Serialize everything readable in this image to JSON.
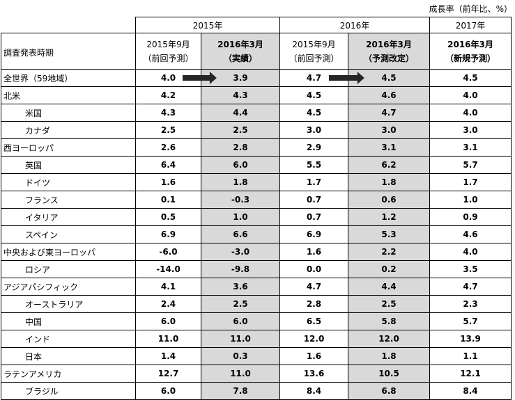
{
  "unit_note": "成長率（前年比、%）",
  "header": {
    "row_label": "調査発表時期",
    "years": [
      "2015年",
      "2016年",
      "2017年"
    ],
    "columns": [
      {
        "line1": "2015年9月",
        "line2": "（前回予測）",
        "bold": false,
        "shaded": false
      },
      {
        "line1": "2016年3月",
        "line2": "（実績）",
        "bold": true,
        "shaded": true
      },
      {
        "line1": "2015年9月",
        "line2": "（前回予測）",
        "bold": false,
        "shaded": false
      },
      {
        "line1": "2016年3月",
        "line2": "（予測改定）",
        "bold": true,
        "shaded": true
      },
      {
        "line1": "2016年3月",
        "line2": "（新規予測）",
        "bold": true,
        "shaded": false
      }
    ]
  },
  "rows": [
    {
      "name": "全世界（59地域）",
      "indent": false,
      "values": [
        "4.0",
        "3.9",
        "4.7",
        "4.5",
        "4.5"
      ],
      "arrows": true
    },
    {
      "name": "北米",
      "indent": false,
      "values": [
        "4.2",
        "4.3",
        "4.5",
        "4.6",
        "4.0"
      ]
    },
    {
      "name": "米国",
      "indent": true,
      "values": [
        "4.3",
        "4.4",
        "4.5",
        "4.7",
        "4.0"
      ]
    },
    {
      "name": "カナダ",
      "indent": true,
      "values": [
        "2.5",
        "2.5",
        "3.0",
        "3.0",
        "3.0"
      ]
    },
    {
      "name": "西ヨーロッパ",
      "indent": false,
      "values": [
        "2.6",
        "2.8",
        "2.9",
        "3.1",
        "3.1"
      ]
    },
    {
      "name": "英国",
      "indent": true,
      "values": [
        "6.4",
        "6.0",
        "5.5",
        "6.2",
        "5.7"
      ]
    },
    {
      "name": "ドイツ",
      "indent": true,
      "values": [
        "1.6",
        "1.8",
        "1.7",
        "1.8",
        "1.7"
      ]
    },
    {
      "name": "フランス",
      "indent": true,
      "values": [
        "0.1",
        "-0.3",
        "0.7",
        "0.6",
        "1.0"
      ]
    },
    {
      "name": "イタリア",
      "indent": true,
      "values": [
        "0.5",
        "1.0",
        "0.7",
        "1.2",
        "0.9"
      ]
    },
    {
      "name": "スペイン",
      "indent": true,
      "values": [
        "6.9",
        "6.6",
        "6.9",
        "5.3",
        "4.6"
      ]
    },
    {
      "name": "中央および東ヨーロッパ",
      "indent": false,
      "values": [
        "-6.0",
        "-3.0",
        "1.6",
        "2.2",
        "4.0"
      ]
    },
    {
      "name": "ロシア",
      "indent": true,
      "values": [
        "-14.0",
        "-9.8",
        "0.0",
        "0.2",
        "3.5"
      ]
    },
    {
      "name": "アジアパシフィック",
      "indent": false,
      "values": [
        "4.1",
        "3.6",
        "4.7",
        "4.4",
        "4.7"
      ]
    },
    {
      "name": "オーストラリア",
      "indent": true,
      "values": [
        "2.4",
        "2.5",
        "2.8",
        "2.5",
        "2.3"
      ]
    },
    {
      "name": "中国",
      "indent": true,
      "values": [
        "6.0",
        "6.0",
        "6.5",
        "5.8",
        "5.7"
      ]
    },
    {
      "name": "インド",
      "indent": true,
      "values": [
        "11.0",
        "11.0",
        "12.0",
        "12.0",
        "13.9"
      ]
    },
    {
      "name": "日本",
      "indent": true,
      "values": [
        "1.4",
        "0.3",
        "1.6",
        "1.8",
        "1.1"
      ]
    },
    {
      "name": "ラテンアメリカ",
      "indent": false,
      "values": [
        "12.7",
        "11.0",
        "13.6",
        "10.5",
        "12.1"
      ]
    },
    {
      "name": "ブラジル",
      "indent": true,
      "values": [
        "6.0",
        "7.8",
        "8.4",
        "6.8",
        "8.4"
      ]
    }
  ],
  "colors": {
    "shade": "#d9d9d9",
    "arrow": "#262626"
  },
  "icons": {
    "arrow": "right-arrow-icon"
  }
}
